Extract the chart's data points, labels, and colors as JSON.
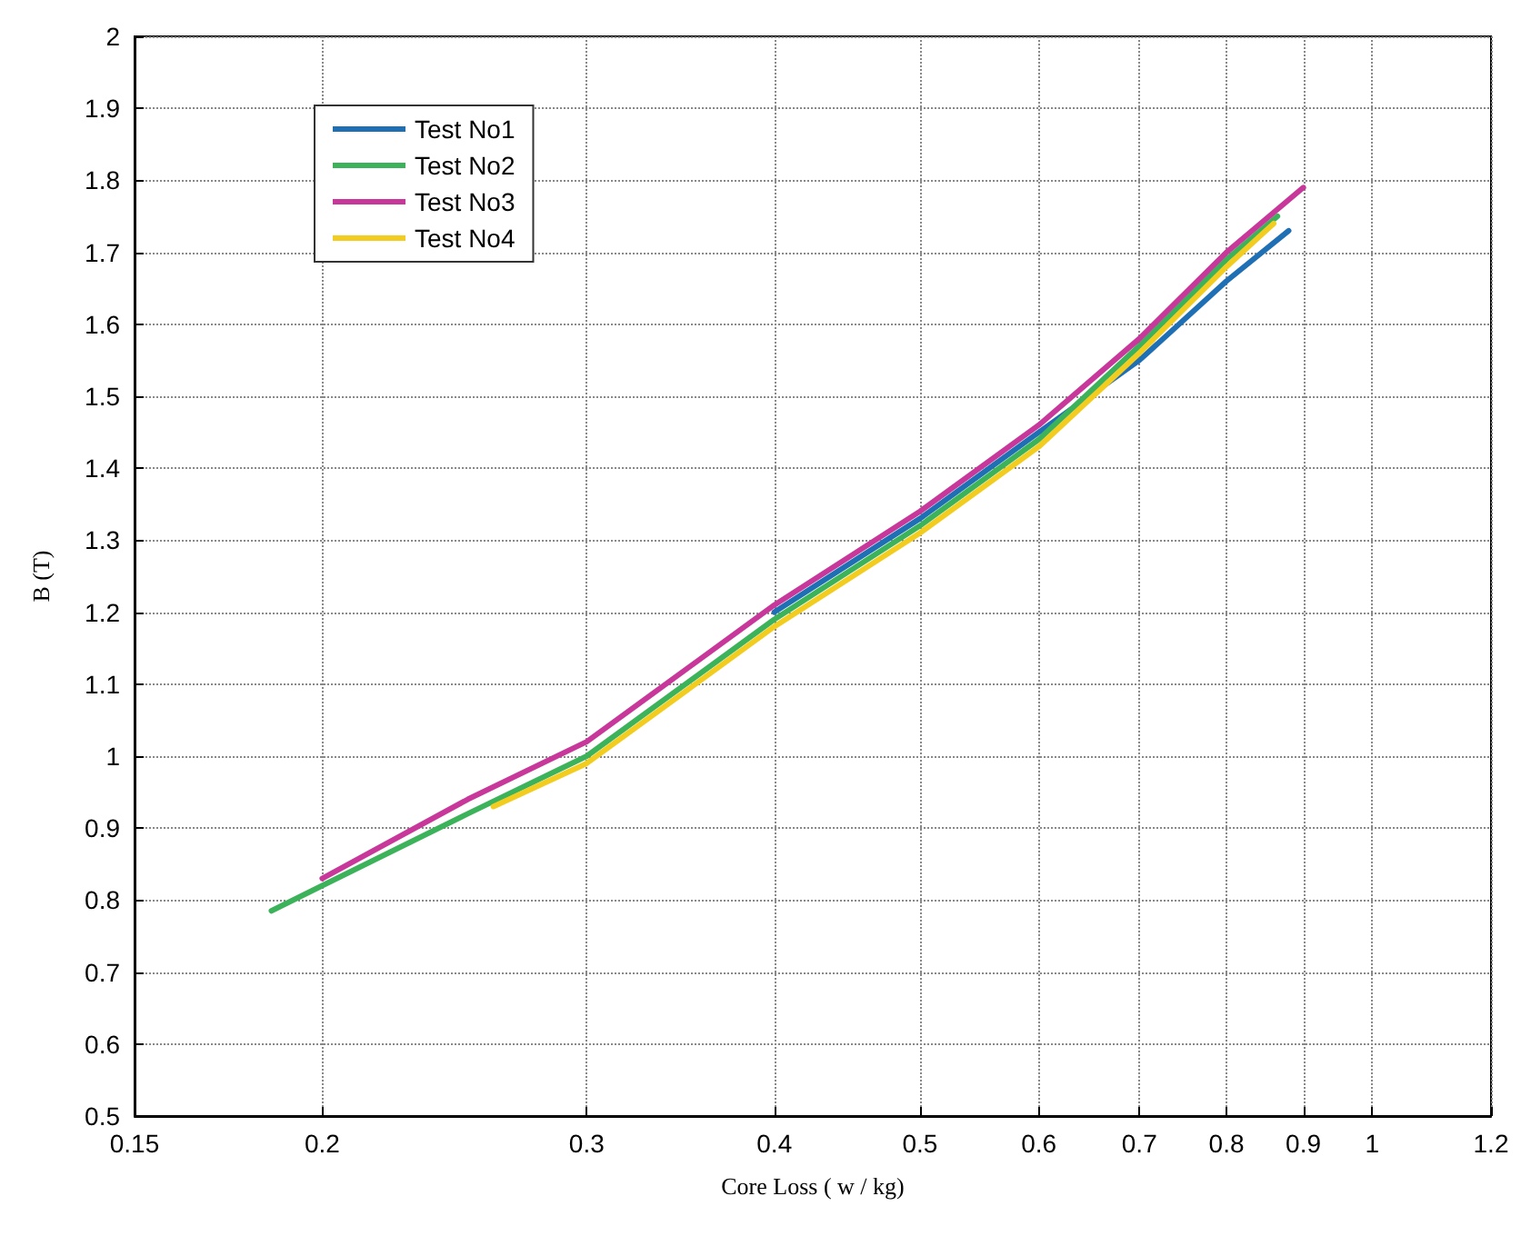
{
  "chart_data": {
    "type": "line",
    "xlabel": "Core Loss ( w / kg)",
    "ylabel": "B (T)",
    "log": "x",
    "xlim": [
      0.15,
      1.2
    ],
    "xticks": [
      0.15,
      0.2,
      0.3,
      0.4,
      0.5,
      0.6,
      0.7,
      0.8,
      0.9,
      1,
      1.2
    ],
    "ylim": [
      0.5,
      2
    ],
    "yticks": [
      0.5,
      0.6,
      0.7,
      0.8,
      0.9,
      1,
      1.1,
      1.2,
      1.3,
      1.4,
      1.5,
      1.6,
      1.7,
      1.8,
      1.9,
      2
    ],
    "grid": true,
    "legend": "top left",
    "marker": "none",
    "line_style": "solid",
    "series": [
      {
        "name": "Test No1",
        "color": "#1f6fb5",
        "x": [
          0.4,
          0.5,
          0.6,
          0.7,
          0.8,
          0.88
        ],
        "values": [
          1.2,
          1.33,
          1.45,
          1.55,
          1.66,
          1.73
        ]
      },
      {
        "name": "Test No2",
        "color": "#3cb35a",
        "x": [
          0.185,
          0.2,
          0.25,
          0.3,
          0.4,
          0.5,
          0.6,
          0.7,
          0.8,
          0.865
        ],
        "values": [
          0.785,
          0.82,
          0.92,
          1.0,
          1.19,
          1.32,
          1.44,
          1.57,
          1.69,
          1.75
        ]
      },
      {
        "name": "Test No3",
        "color": "#c7389a",
        "x": [
          0.2,
          0.25,
          0.3,
          0.4,
          0.5,
          0.6,
          0.7,
          0.8,
          0.9
        ],
        "values": [
          0.83,
          0.94,
          1.02,
          1.21,
          1.34,
          1.46,
          1.58,
          1.7,
          1.79
        ]
      },
      {
        "name": "Test No4",
        "color": "#f2cc1f",
        "x": [
          0.26,
          0.3,
          0.4,
          0.5,
          0.6,
          0.7,
          0.8,
          0.86
        ],
        "values": [
          0.93,
          0.99,
          1.18,
          1.31,
          1.43,
          1.56,
          1.68,
          1.74
        ]
      }
    ]
  }
}
